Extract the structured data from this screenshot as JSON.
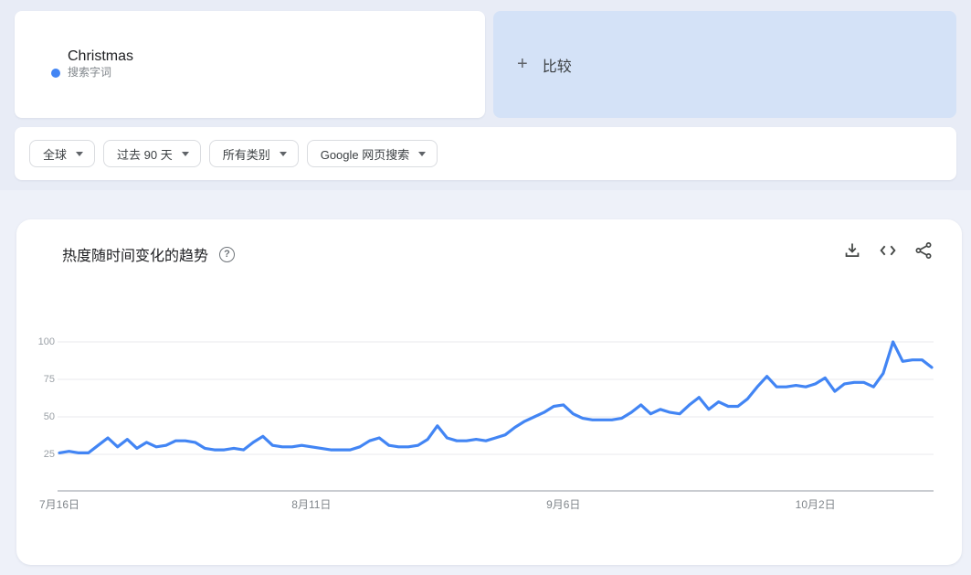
{
  "term_card": {
    "term": "Christmas",
    "type_label": "搜索字词"
  },
  "compare_card": {
    "plus": "+",
    "label": "比较"
  },
  "filters": {
    "region": "全球",
    "time": "过去 90 天",
    "category": "所有类别",
    "search_type": "Google 网页搜索"
  },
  "trend_card": {
    "title": "热度随时间变化的趋势",
    "help_glyph": "?",
    "action_icons": [
      "download-icon",
      "embed-code-icon",
      "share-icon"
    ]
  },
  "colors": {
    "series_blue": "#4285f4",
    "compare_card_bg": "#d4e2f7"
  },
  "chart_data": {
    "type": "line",
    "title": "热度随时间变化的趋势",
    "xlabel": "",
    "ylabel": "",
    "ylim": [
      0,
      100
    ],
    "grid": true,
    "legend": "none",
    "y_ticks": [
      25,
      50,
      75,
      100
    ],
    "x_tick_labels": [
      {
        "index": 0,
        "label": "7月16日"
      },
      {
        "index": 26,
        "label": "8月11日"
      },
      {
        "index": 52,
        "label": "9月6日"
      },
      {
        "index": 78,
        "label": "10月2日"
      }
    ],
    "series": [
      {
        "name": "Christmas",
        "color": "#4285f4",
        "values": [
          26,
          27,
          26,
          26,
          31,
          36,
          30,
          35,
          29,
          33,
          30,
          31,
          34,
          34,
          33,
          29,
          28,
          28,
          29,
          28,
          33,
          37,
          31,
          30,
          30,
          31,
          30,
          29,
          28,
          28,
          28,
          30,
          34,
          36,
          31,
          30,
          30,
          31,
          35,
          44,
          36,
          34,
          34,
          35,
          34,
          36,
          38,
          43,
          47,
          50,
          53,
          57,
          58,
          52,
          49,
          48,
          48,
          48,
          49,
          53,
          58,
          52,
          55,
          53,
          52,
          58,
          63,
          55,
          60,
          57,
          57,
          62,
          70,
          77,
          70,
          70,
          71,
          70,
          72,
          76,
          67,
          72,
          73,
          73,
          70,
          79,
          100,
          87,
          88,
          88,
          83
        ]
      }
    ]
  }
}
